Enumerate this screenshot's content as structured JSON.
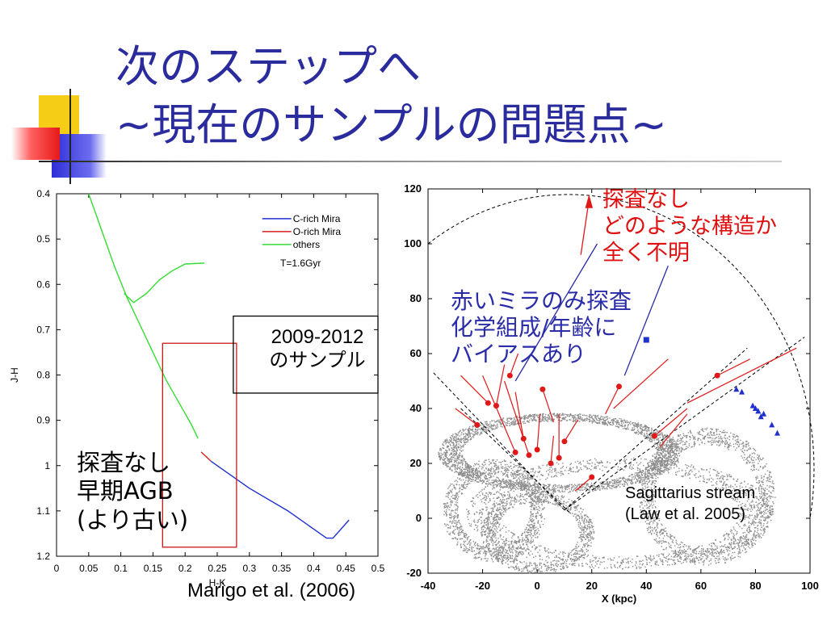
{
  "slide": {
    "title_line1": "次のステップへ",
    "title_line2": "~現在のサンプルの問題点~",
    "left_annotations": {
      "sample_box": [
        "2009-2012",
        "のサンプル"
      ],
      "unexplored": [
        "探査なし",
        "早期AGB",
        "(より古い)"
      ],
      "citation": "Marigo et al. (2006)"
    },
    "right_annotations": {
      "unexplored": [
        "探査なし",
        "どのような構造か",
        "全く不明"
      ],
      "bias": [
        "赤いミラのみ探査",
        "化学組成/年齢に",
        "バイアスあり"
      ],
      "stream_label": [
        "Sagittarius stream",
        "(Law et al. 2005)"
      ]
    },
    "colors": {
      "title": "#2a2c9e",
      "red_text": "#e01010",
      "blue_text": "#2a2ca8",
      "c_rich": "#1f2fd0",
      "o_rich": "#d42020",
      "others": "#33dd33",
      "stream": "#8c8c8c",
      "points": "#e01818"
    }
  },
  "chart_data": [
    {
      "type": "line",
      "xlabel": "H-K",
      "ylabel": "J-H",
      "xlim": [
        0,
        0.5
      ],
      "ylim": [
        1.2,
        0.4
      ],
      "y_inverted": true,
      "xticks": [
        "0",
        "0.05",
        "0.1",
        "0.15",
        "0.2",
        "0.25",
        "0.3",
        "0.35",
        "0.4",
        "0.45",
        "0.5"
      ],
      "yticks": [
        "0.4",
        "0.5",
        "0.6",
        "0.7",
        "0.8",
        "0.9",
        "1",
        "1.1",
        "1.2"
      ],
      "legend": [
        "C-rich Mira",
        "O-rich Mira",
        "others"
      ],
      "legend_position": "top-right",
      "annotation": "T=1.6Gyr",
      "series": [
        {
          "name": "others",
          "x": [
            0.05,
            0.07,
            0.09,
            0.11,
            0.13,
            0.15,
            0.17,
            0.19,
            0.21,
            0.22
          ],
          "y": [
            0.4,
            0.48,
            0.56,
            0.63,
            0.69,
            0.75,
            0.81,
            0.86,
            0.91,
            0.94
          ]
        },
        {
          "name": "others",
          "x": [
            0.105,
            0.12,
            0.14,
            0.16,
            0.18,
            0.2,
            0.23
          ],
          "y": [
            0.62,
            0.64,
            0.62,
            0.59,
            0.57,
            0.555,
            0.553
          ]
        },
        {
          "name": "O-rich Mira",
          "x": [
            0.225,
            0.24
          ],
          "y": [
            0.97,
            0.99
          ]
        },
        {
          "name": "C-rich Mira",
          "x": [
            0.24,
            0.3,
            0.36,
            0.42,
            0.43,
            0.455
          ],
          "y": [
            0.99,
            1.05,
            1.1,
            1.16,
            1.16,
            1.12
          ]
        }
      ],
      "boxes": [
        {
          "type": "red",
          "x": [
            0.165,
            0.28
          ],
          "y": [
            0.73,
            1.18
          ]
        },
        {
          "type": "black",
          "x": [
            0.275,
            0.5
          ],
          "y": [
            0.67,
            0.84
          ]
        }
      ]
    },
    {
      "type": "scatter",
      "xlabel": "X (kpc)",
      "ylabel": "",
      "xlim": [
        -40,
        100
      ],
      "ylim": [
        -20,
        120
      ],
      "xticks": [
        "-40",
        "-20",
        "0",
        "20",
        "40",
        "60",
        "80",
        "100"
      ],
      "yticks": [
        "-20",
        "0",
        "20",
        "40",
        "60",
        "80",
        "100",
        "120"
      ],
      "red_points": [
        {
          "x": -18,
          "y": 42
        },
        {
          "x": -15,
          "y": 41
        },
        {
          "x": -10,
          "y": 52
        },
        {
          "x": -22,
          "y": 34
        },
        {
          "x": 2,
          "y": 47
        },
        {
          "x": 8,
          "y": 22
        },
        {
          "x": -5,
          "y": 29
        },
        {
          "x": 0,
          "y": 25
        },
        {
          "x": -3,
          "y": 23
        },
        {
          "x": 5,
          "y": 20
        },
        {
          "x": -8,
          "y": 24
        },
        {
          "x": 30,
          "y": 48
        },
        {
          "x": 43,
          "y": 30
        },
        {
          "x": 66,
          "y": 52
        },
        {
          "x": 20,
          "y": 15
        },
        {
          "x": 10,
          "y": 28
        }
      ],
      "blue_points": [
        {
          "x": 73,
          "y": 47
        },
        {
          "x": 75,
          "y": 46
        },
        {
          "x": 79,
          "y": 41
        },
        {
          "x": 80,
          "y": 40
        },
        {
          "x": 81,
          "y": 39
        },
        {
          "x": 82,
          "y": 37
        },
        {
          "x": 83,
          "y": 38
        },
        {
          "x": 86,
          "y": 34
        },
        {
          "x": 88,
          "y": 31
        }
      ],
      "blue_square": {
        "x": 40,
        "y": 65
      }
    }
  ]
}
